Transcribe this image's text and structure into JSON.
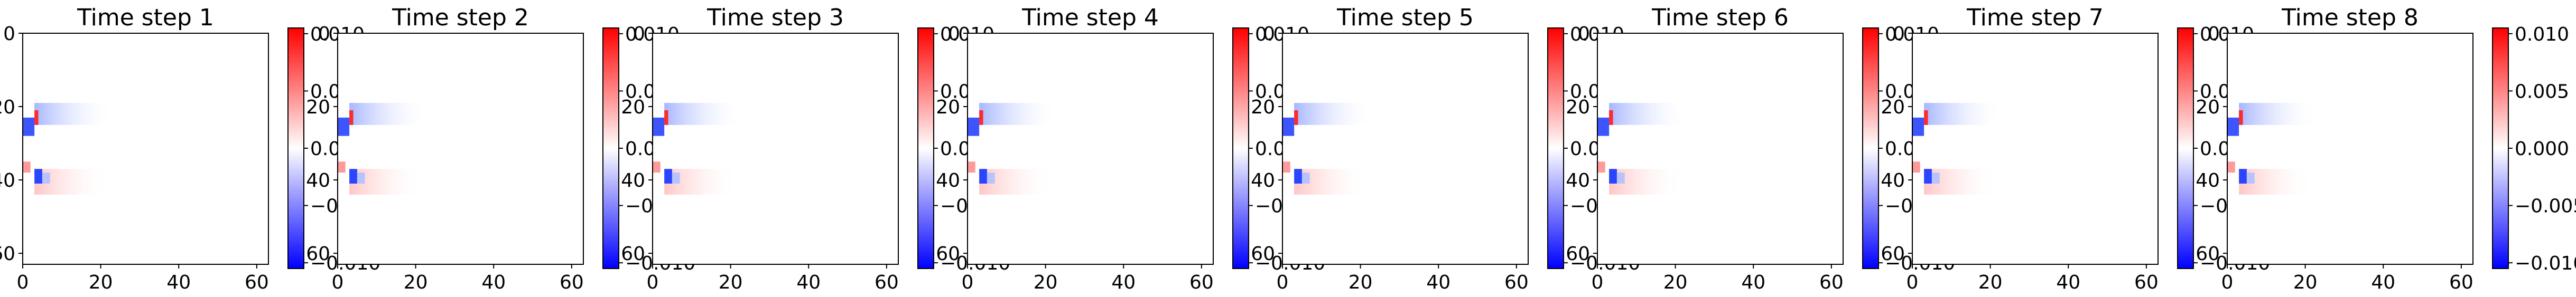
{
  "chart_data": [
    {
      "type": "heatmap",
      "title": "Time step 1",
      "xticks": [
        "0",
        "20",
        "40",
        "60"
      ],
      "yticks": [
        "0",
        "20",
        "40",
        "60"
      ],
      "xlim": [
        0,
        63
      ],
      "ylim": [
        63,
        0
      ],
      "colorbar": {
        "ticks": [
          "0.010",
          "0.005",
          "0.000",
          "−0.005",
          "−0.010"
        ],
        "range": [
          -0.0105,
          0.0105
        ]
      }
    },
    {
      "type": "heatmap",
      "title": "Time step 2",
      "xticks": [
        "0",
        "20",
        "40",
        "60"
      ],
      "yticks": [
        "0",
        "20",
        "40",
        "60"
      ],
      "xlim": [
        0,
        63
      ],
      "ylim": [
        63,
        0
      ],
      "colorbar": {
        "ticks": [
          "0.010",
          "0.005",
          "0.000",
          "−0.005",
          "−0.010"
        ],
        "range": [
          -0.0105,
          0.0105
        ]
      }
    },
    {
      "type": "heatmap",
      "title": "Time step 3",
      "xticks": [
        "0",
        "20",
        "40",
        "60"
      ],
      "yticks": [
        "0",
        "20",
        "40",
        "60"
      ],
      "xlim": [
        0,
        63
      ],
      "ylim": [
        63,
        0
      ],
      "colorbar": {
        "ticks": [
          "0.010",
          "0.005",
          "0.000",
          "−0.005",
          "−0.010"
        ],
        "range": [
          -0.0105,
          0.0105
        ]
      }
    },
    {
      "type": "heatmap",
      "title": "Time step 4",
      "xticks": [
        "0",
        "20",
        "40",
        "60"
      ],
      "yticks": [
        "0",
        "20",
        "40",
        "60"
      ],
      "xlim": [
        0,
        63
      ],
      "ylim": [
        63,
        0
      ],
      "colorbar": {
        "ticks": [
          "0.010",
          "0.005",
          "0.000",
          "−0.005",
          "−0.010"
        ],
        "range": [
          -0.0105,
          0.0105
        ]
      }
    },
    {
      "type": "heatmap",
      "title": "Time step 5",
      "xticks": [
        "0",
        "20",
        "40",
        "60"
      ],
      "yticks": [
        "0",
        "20",
        "40",
        "60"
      ],
      "xlim": [
        0,
        63
      ],
      "ylim": [
        63,
        0
      ],
      "colorbar": {
        "ticks": [
          "0.010",
          "0.005",
          "0.000",
          "−0.005",
          "−0.010"
        ],
        "range": [
          -0.0105,
          0.0105
        ]
      }
    },
    {
      "type": "heatmap",
      "title": "Time step 6",
      "xticks": [
        "0",
        "20",
        "40",
        "60"
      ],
      "yticks": [
        "0",
        "20",
        "40",
        "60"
      ],
      "xlim": [
        0,
        63
      ],
      "ylim": [
        63,
        0
      ],
      "colorbar": {
        "ticks": [
          "0.010",
          "0.005",
          "0.000",
          "−0.005",
          "−0.010"
        ],
        "range": [
          -0.0105,
          0.0105
        ]
      }
    },
    {
      "type": "heatmap",
      "title": "Time step 7",
      "xticks": [
        "0",
        "20",
        "40",
        "60"
      ],
      "yticks": [
        "0",
        "20",
        "40",
        "60"
      ],
      "xlim": [
        0,
        63
      ],
      "ylim": [
        63,
        0
      ],
      "colorbar": {
        "ticks": [
          "0.010",
          "0.005",
          "0.000",
          "−0.005",
          "−0.010"
        ],
        "range": [
          -0.0105,
          0.0105
        ]
      }
    },
    {
      "type": "heatmap",
      "title": "Time step 8",
      "xticks": [
        "0",
        "20",
        "40",
        "60"
      ],
      "yticks": [
        "0",
        "20",
        "40",
        "60"
      ],
      "xlim": [
        0,
        63
      ],
      "ylim": [
        63,
        0
      ],
      "colorbar": {
        "ticks": [
          "0.010",
          "0.005",
          "0.000",
          "−0.005",
          "−0.010"
        ],
        "range": [
          -0.0105,
          0.0105
        ]
      }
    }
  ]
}
